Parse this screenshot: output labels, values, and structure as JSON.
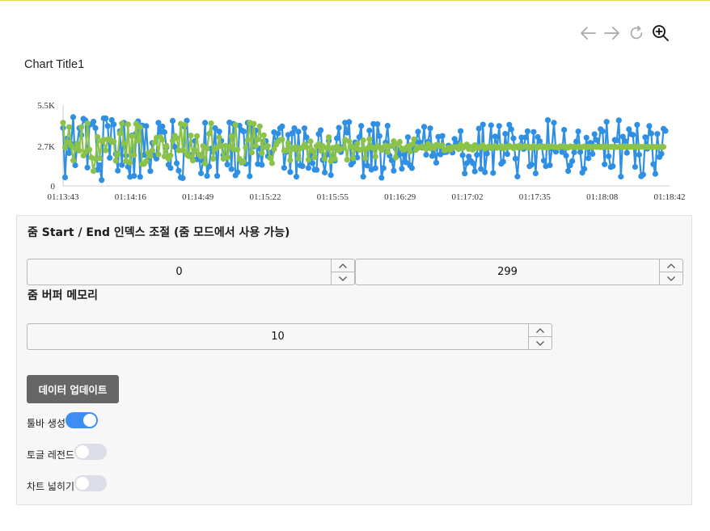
{
  "toolbar": {
    "icons": [
      "arrow-left-icon",
      "arrow-right-icon",
      "refresh-icon",
      "zoom-in-icon"
    ],
    "colors": {
      "disabled": "#a9a9a9",
      "active": "#111111"
    }
  },
  "chart": {
    "title": "Chart Title1"
  },
  "chart_data": {
    "type": "line",
    "title": "Chart Title1",
    "xlabel": "",
    "ylabel": "",
    "y_ticks": [
      "0",
      "2.7K",
      "5.5K"
    ],
    "ylim": [
      0,
      5500
    ],
    "x_ticks": [
      "01:13:43",
      "01:14:16",
      "01:14:49",
      "01:15:22",
      "01:15:55",
      "01:16:29",
      "01:17:02",
      "01:17:35",
      "01:18:08",
      "01:18:42"
    ],
    "x_range": [
      "01:13:43",
      "01:18:42"
    ],
    "points_per_series": 300,
    "grid": false,
    "legend": "none",
    "series": [
      {
        "color": "#2e8fe3",
        "values": [
          3946,
          578,
          3218,
          2232,
          2862,
          4680,
          1402,
          2880,
          3932,
          3458,
          4568,
          4464,
          1246,
          4168,
          4190,
          4370,
          3930,
          1096,
          1402,
          398,
          4590,
          4598,
          4082,
          1908,
          4484,
          4190,
          2180,
          1032,
          3722,
          1420,
          4294,
          2060,
          1302,
          618,
          3432,
          680,
          3564,
          4396,
          618,
          4114,
          2100,
          4070,
          1828,
          1008,
          2926,
          2068,
          1856,
          4302,
          3652,
          4042,
          3660,
          2622,
          1440,
          1216,
          4434,
          2662,
          1540,
          1036,
          574,
          528,
          4012,
          4444,
          2074,
          2096,
          1808,
          3052,
          1806,
          1986,
          854,
          1700,
          4294,
          676,
          1312,
          2542,
          2314,
          3934,
          676,
          3702,
          3070,
          2102,
          2164,
          1452,
          4318,
          1136,
          4226,
          714,
          930,
          4100,
          3784,
          3708,
          1500,
          4294,
          662,
          4000,
          2676,
          3766,
          1484,
          2548,
          1432,
          3022,
          3054,
          2018,
          2054,
          2312,
          3652,
          2868,
          3562,
          3924,
          4050,
          1228,
          2314,
          3476,
          938,
          3592,
          3926,
          628,
          3692,
          1394,
          1342,
          3922,
          3312,
          1222,
          2140,
          1552,
          1100,
          1090,
          3532,
          3788,
          1758,
          914,
          2116,
          3066,
          734,
          2570,
          1716,
          3236,
          3962,
          2300,
          2616,
          4300,
          3622,
          4348,
          1452,
          1624,
          2966,
          1930,
          3316,
          4084,
          626,
          2472,
          1380,
          3766,
          1106,
          4220,
          1202,
          4200,
          3394,
          558,
          1210,
          2950,
          4092,
          2064,
          1734,
          1030,
          2532,
          2070,
          2446,
          1164,
          2148,
          1604,
          3318,
          1398,
          1216,
          2504,
          3006,
          3692,
          2946,
          2600,
          4020,
          2120,
          3002,
          3922,
          2040,
          2542,
          1580,
          3346,
          2138,
          3398,
          2286,
          2306,
          2744,
          2446,
          2264,
          3200,
          2920,
          2710,
          3730,
          2090,
          842,
          1540,
          2004,
          1698,
          1548,
          986,
          2112,
          3900,
          1154,
          4174,
          928,
          2208,
          2604,
          4124,
          882,
          3366,
          2602,
          4082,
          1508,
          1646,
          3546,
          2164,
          4164,
          3852,
          3234,
          1854,
          640,
          2596,
          3292,
          2508,
          3294,
          3716,
          1334,
          1448,
          3676,
          854,
          3326,
          3040,
          2700,
          1716,
          1344,
          4478,
          1406,
          2532,
          4300,
          2326,
          2606,
          2664,
          2304,
          3818,
          2058,
          1010,
          1396,
          1690,
          2282,
          3022,
          3708,
          2304,
          904,
          1162,
          3286,
          1880,
          2932,
          2180,
          3520,
          3122,
          2716,
          3862,
          3718,
          1470,
          4364,
          2012,
          1282,
          1342,
          3132,
          3098,
          4458,
          634,
          3350,
          3052,
          2248,
          3856,
          3522,
          3474,
          1290,
          4158,
          2118,
          652,
          768,
          3314,
          2532,
          4076,
          3566,
          1474,
          822,
          3534,
          1966,
          2186,
          3888,
          3744
        ]
      },
      {
        "color": "#8bc34a",
        "values": [
          4302,
          2622,
          2976,
          4002,
          2738,
          1732,
          2542,
          2870,
          2394,
          3994,
          2064,
          2296,
          4250,
          2470,
          1932,
          1004,
          1834,
          3328,
          1880,
          3046,
          3152,
          2416,
          3154,
          3178,
          2986,
          3028,
          1710,
          2148,
          3562,
          4246,
          2880,
          1686,
          4186,
          1584,
          3384,
          2090,
          4222,
          3080,
          3998,
          1474,
          1498,
          1684,
          2256,
          2034,
          2406,
          2954,
          3270,
          2138,
          3326,
          3136,
          2010,
          2728,
          1840,
          2060,
          3072,
          3420,
          3256,
          2414,
          4232,
          2412,
          4164,
          2118,
          2016,
          3428,
          1726,
          2424,
          3392,
          2136,
          2014,
          2712,
          1528,
          2540,
          3546,
          4256,
          1844,
          2542,
          2616,
          3298,
          2712,
          1844,
          2726,
          1940,
          2658,
          3388,
          2498,
          4158,
          2466,
          1844,
          1576,
          1654,
          2612,
          3128,
          4300,
          2270,
          4230,
          2722,
          3156,
          4052,
          2232,
          3446,
          2640,
          2710,
          1904,
          1546,
          2504,
          2810,
          3006,
          3128,
          3152,
          2390,
          2402,
          2920,
          1754,
          2600,
          2498,
          2648,
          1864,
          2546,
          2610,
          2810,
          2628,
          1774,
          3032,
          2396,
          1934,
          2704,
          2846,
          2388,
          2722,
          1834,
          2580,
          3314,
          1672,
          2588,
          1838,
          2702,
          2422,
          2524,
          2544,
          3142,
          1784,
          3038,
          2696,
          1872,
          2552,
          2870,
          2460,
          2456,
          3102,
          1900,
          2554,
          3190,
          2648,
          2560,
          1984,
          2738,
          2626,
          2442,
          2628,
          2742,
          2300,
          2704,
          2712,
          3040,
          1932,
          2836,
          3000,
          2534,
          2454,
          2572,
          2706,
          2330,
          2814,
          3172,
          2448,
          2626,
          2620,
          2686,
          2596,
          2526,
          2862,
          2560,
          2700,
          2568,
          2782,
          2766,
          2718,
          2760,
          2412,
          2454,
          2596,
          2466,
          2650,
          2624,
          2652,
          2500,
          2800,
          2568,
          2692,
          2820,
          2510,
          2644,
          2460,
          2774,
          2600,
          2580,
          2680,
          2756,
          2530,
          2610,
          2698,
          2566,
          2642,
          2716,
          2584,
          2626,
          2696,
          2538,
          2672,
          2604,
          2728,
          2646,
          2562,
          2690,
          2618,
          2736,
          2584,
          2664,
          2700,
          2620,
          2658,
          2592,
          2714,
          2640,
          2608,
          2694,
          2654,
          2622,
          2682,
          2598,
          2666,
          2706,
          2630,
          2648,
          2612,
          2688,
          2672,
          2636,
          2660,
          2604,
          2696,
          2644,
          2678,
          2626,
          2668,
          2652,
          2640,
          2684,
          2616,
          2674,
          2658,
          2634,
          2690,
          2646,
          2662,
          2628,
          2680,
          2654,
          2670,
          2638,
          2664,
          2648,
          2676,
          2642,
          2658,
          2668,
          2650,
          2660,
          2656,
          2652,
          2664,
          2654,
          2662,
          2658,
          2660,
          2656,
          2658,
          2660,
          2657,
          2659,
          2658,
          2658,
          2658,
          2658,
          2658,
          2658,
          2658
        ]
      }
    ]
  },
  "panel": {
    "zoom_title": "줌 Start / End 인덱스 조절 (줌 모드에서 사용 가능)",
    "zoom_start": "0",
    "zoom_end": "299",
    "buffer_title": "줌 버퍼 메모리",
    "buffer_value": "10",
    "update_button": "데이터 업데이트",
    "toggles": [
      {
        "label": "툴바 생성",
        "checked": true
      },
      {
        "label": "토글 레전드",
        "checked": false
      },
      {
        "label": "차트 넓히기",
        "checked": false
      }
    ],
    "colors": {
      "toggle_on": "#3d8df5",
      "toggle_off": "#dcdde6",
      "button": "#666666"
    }
  }
}
